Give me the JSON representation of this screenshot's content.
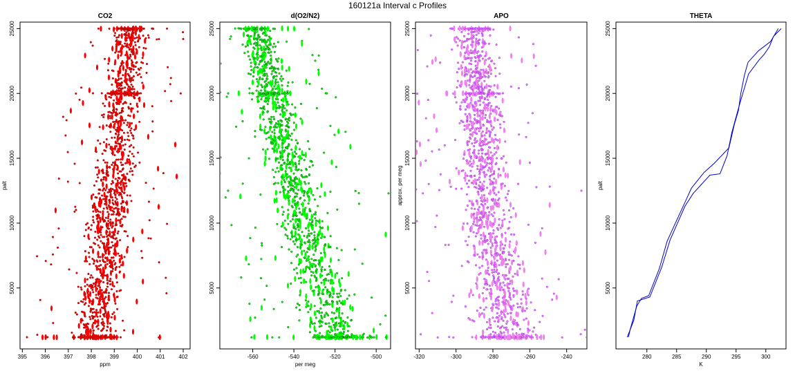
{
  "figure": {
    "title": "160121a   Interval c Profiles"
  },
  "chart_data": [
    {
      "id": "co2",
      "type": "scatter",
      "title": "CO2",
      "xlabel": "ppm",
      "ylabel": "palt",
      "xlim": [
        394.9,
        402.3
      ],
      "ylim": [
        300,
        25500
      ],
      "xticks": [
        "395",
        "396",
        "397",
        "398",
        "399",
        "400",
        "401",
        "402"
      ],
      "yticks": [
        "5000",
        "10000",
        "15000",
        "20000",
        "25000"
      ],
      "color": "#ff0000",
      "edge_color": "#8b0000",
      "grid": false,
      "legend": "none",
      "data_summary": {
        "points_total": 1500,
        "band_low": {
          "y": [
            1200,
            10000,
            25000
          ],
          "x": [
            396.8,
            397.4,
            398.6
          ]
        },
        "band_high": {
          "y": [
            1200,
            10000,
            25000
          ],
          "x": [
            399.5,
            400.1,
            400.8
          ]
        },
        "outlier_extremes": {
          "x": [
            395.2,
            402.0
          ],
          "y": [
            1200,
            24200
          ]
        },
        "dense_rows_y": [
          1200,
          20000,
          25000
        ]
      }
    },
    {
      "id": "do2n2",
      "type": "scatter",
      "title": "d(O2/N2)",
      "xlabel": "per meg",
      "ylabel": "",
      "xlim": [
        -576,
        -493
      ],
      "ylim": [
        300,
        25500
      ],
      "xticks": [
        "-560",
        "-540",
        "-520",
        "-500"
      ],
      "yticks": [
        "5000",
        "10000",
        "15000",
        "20000",
        "25000"
      ],
      "color": "#00ff00",
      "edge_color": "#006400",
      "grid": false,
      "legend": "none",
      "data_summary": {
        "points_total": 1500,
        "band_low": {
          "y": [
            1200,
            10000,
            25000
          ],
          "x": [
            -538,
            -553,
            -571
          ]
        },
        "band_high": {
          "y": [
            1200,
            10000,
            25000
          ],
          "x": [
            -499,
            -518,
            -546
          ]
        },
        "outlier_extremes": {
          "x": [
            -572,
            -494
          ],
          "y": [
            12500,
            12300
          ]
        },
        "dense_rows_y": [
          1200,
          20000,
          25000
        ]
      }
    },
    {
      "id": "apo",
      "type": "scatter",
      "title": "APO",
      "xlabel": "",
      "ylabel": "approx. per meg",
      "xlim": [
        -322,
        -229
      ],
      "ylim": [
        300,
        25500
      ],
      "xticks": [
        "-320",
        "-300",
        "-280",
        "-260",
        "-240"
      ],
      "yticks": [
        "5000",
        "10000",
        "15000",
        "20000",
        "25000"
      ],
      "color": "#ee82ee",
      "edge_color": "#a020f0",
      "grid": false,
      "legend": "none",
      "data_summary": {
        "points_total": 1500,
        "band_low": {
          "y": [
            1200,
            10000,
            25000
          ],
          "x": [
            -296,
            -302,
            -305
          ]
        },
        "band_high": {
          "y": [
            1200,
            10000,
            25000
          ],
          "x": [
            -246,
            -264,
            -276
          ]
        },
        "outlier_extremes": {
          "x": [
            -318,
            -232
          ],
          "y": [
            12300,
            12500
          ]
        },
        "dense_rows_y": [
          1200,
          20000,
          25000
        ]
      }
    },
    {
      "id": "theta",
      "type": "line",
      "title": "THETA",
      "xlabel": "K",
      "ylabel": "palt",
      "xlim": [
        274.8,
        303.4
      ],
      "ylim": [
        300,
        25500
      ],
      "xticks": [
        "280",
        "285",
        "290",
        "295",
        "300"
      ],
      "yticks": [
        "5000",
        "10000",
        "15000",
        "20000",
        "25000"
      ],
      "color": "#0000cd",
      "grid": false,
      "legend": "none",
      "series": [
        {
          "x": [
            276.9,
            277.2,
            278.3,
            279.1,
            280.3,
            282.1,
            283.4,
            284.8,
            286.4,
            287.5,
            289.6,
            291.3,
            293.8,
            294.7,
            295.4,
            295.8,
            296.4,
            297.0,
            298.8,
            300.8,
            302.1
          ],
          "y": [
            1200,
            1800,
            3600,
            4200,
            4400,
            6500,
            8600,
            10000,
            11600,
            12700,
            13900,
            14600,
            15800,
            17600,
            18700,
            20000,
            21400,
            22400,
            23300,
            24000,
            25000
          ]
        },
        {
          "x": [
            276.7,
            277.8,
            278.4,
            280.5,
            282.5,
            283.9,
            286.4,
            287.8,
            289.2,
            290.6,
            292.3,
            293.5,
            294.3,
            295.5,
            297.1,
            298.9,
            299.7,
            300.6,
            301.3,
            302.6
          ],
          "y": [
            1200,
            2500,
            4000,
            4300,
            6600,
            8700,
            11300,
            12300,
            13000,
            13700,
            13800,
            15200,
            17000,
            19000,
            21500,
            22600,
            23000,
            23600,
            24400,
            25000
          ]
        }
      ]
    }
  ]
}
